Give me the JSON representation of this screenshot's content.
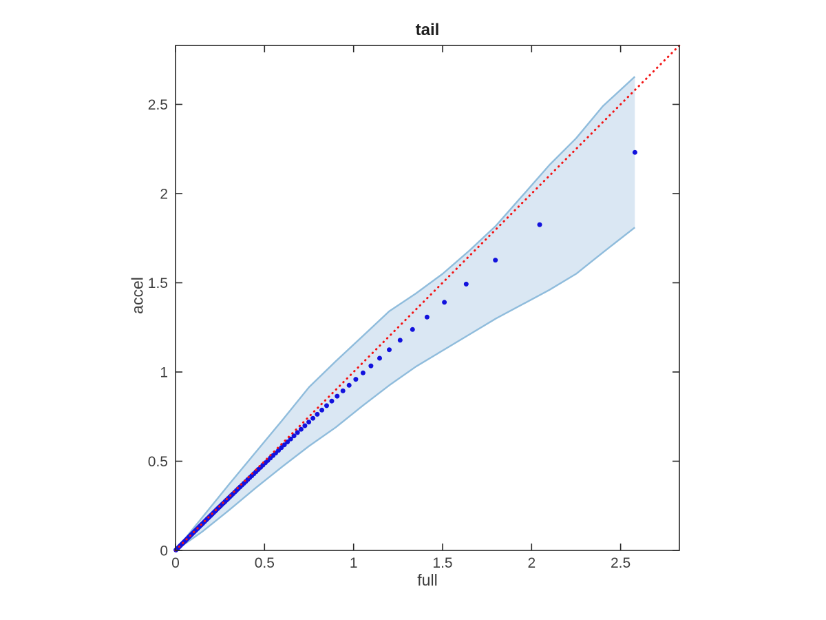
{
  "chart_data": {
    "type": "scatter",
    "title": "tail",
    "xlabel": "full",
    "ylabel": "accel",
    "xlim": [
      0,
      2.83
    ],
    "ylim": [
      0,
      2.83
    ],
    "x_ticks": [
      0,
      0.5,
      1,
      1.5,
      2,
      2.5
    ],
    "y_ticks": [
      0,
      0.5,
      1,
      1.5,
      2,
      2.5
    ],
    "x_tick_labels": [
      "0",
      "0.5",
      "1",
      "1.5",
      "2",
      "2.5"
    ],
    "y_tick_labels": [
      "0",
      "0.5",
      "1",
      "1.5",
      "2",
      "2.5"
    ],
    "grid": false,
    "legend": "none",
    "marker": "filled-circle",
    "n_points": 100,
    "colors": {
      "point": "#1212dd",
      "ref_line": "#f21414",
      "band_fill": "#dae7f3",
      "band_edge": "#8fbcdc",
      "axis": "#262626",
      "text": "#3d3d3d"
    },
    "ref_line": {
      "style": "dotted",
      "equation": "y = x",
      "from": [
        0,
        0
      ],
      "to": [
        2.83,
        2.83
      ]
    },
    "band": {
      "x": [
        0,
        0.15,
        0.3,
        0.45,
        0.6,
        0.75,
        0.9,
        1.05,
        1.2,
        1.35,
        1.5,
        1.65,
        1.8,
        1.95,
        2.1,
        2.25,
        2.4,
        2.58
      ],
      "upper": [
        0,
        0.185,
        0.37,
        0.55,
        0.73,
        0.915,
        1.06,
        1.2,
        1.34,
        1.44,
        1.55,
        1.68,
        1.82,
        1.99,
        2.16,
        2.31,
        2.49,
        2.655
      ],
      "lower": [
        0,
        0.105,
        0.225,
        0.35,
        0.47,
        0.585,
        0.69,
        0.81,
        0.925,
        1.03,
        1.12,
        1.21,
        1.3,
        1.38,
        1.46,
        1.55,
        1.67,
        1.81
      ]
    },
    "points": [
      [
        0.0024,
        0.0024
      ],
      [
        0.0074,
        0.0074
      ],
      [
        0.0123,
        0.0123
      ],
      [
        0.0174,
        0.0174
      ],
      [
        0.0224,
        0.0224
      ],
      [
        0.0276,
        0.0276
      ],
      [
        0.0327,
        0.0327
      ],
      [
        0.038,
        0.0379
      ],
      [
        0.0433,
        0.0432
      ],
      [
        0.0486,
        0.0485
      ],
      [
        0.054,
        0.0538
      ],
      [
        0.0595,
        0.0593
      ],
      [
        0.065,
        0.0648
      ],
      [
        0.0706,
        0.0703
      ],
      [
        0.0763,
        0.076
      ],
      [
        0.082,
        0.0816
      ],
      [
        0.0878,
        0.0874
      ],
      [
        0.0937,
        0.0932
      ],
      [
        0.0996,
        0.0991
      ],
      [
        0.1056,
        0.105
      ],
      [
        0.1117,
        0.111
      ],
      [
        0.1179,
        0.1172
      ],
      [
        0.1241,
        0.1233
      ],
      [
        0.1305,
        0.1296
      ],
      [
        0.1369,
        0.1359
      ],
      [
        0.1434,
        0.1423
      ],
      [
        0.1499,
        0.1487
      ],
      [
        0.1566,
        0.1553
      ],
      [
        0.1634,
        0.162
      ],
      [
        0.1702,
        0.1687
      ],
      [
        0.1772,
        0.1756
      ],
      [
        0.1843,
        0.1825
      ],
      [
        0.1914,
        0.1895
      ],
      [
        0.1987,
        0.1966
      ],
      [
        0.2061,
        0.2039
      ],
      [
        0.2136,
        0.2112
      ],
      [
        0.2212,
        0.2186
      ],
      [
        0.2289,
        0.2261
      ],
      [
        0.2367,
        0.2338
      ],
      [
        0.2447,
        0.2416
      ],
      [
        0.2529,
        0.2495
      ],
      [
        0.2611,
        0.2575
      ],
      [
        0.2695,
        0.2657
      ],
      [
        0.278,
        0.2739
      ],
      [
        0.2867,
        0.2824
      ],
      [
        0.2956,
        0.291
      ],
      [
        0.3046,
        0.2997
      ],
      [
        0.3138,
        0.3086
      ],
      [
        0.3232,
        0.3177
      ],
      [
        0.3327,
        0.3269
      ],
      [
        0.3424,
        0.3362
      ],
      [
        0.3524,
        0.3459
      ],
      [
        0.3625,
        0.3556
      ],
      [
        0.3729,
        0.3656
      ],
      [
        0.3835,
        0.3758
      ],
      [
        0.3943,
        0.3861
      ],
      [
        0.4054,
        0.3968
      ],
      [
        0.4167,
        0.4076
      ],
      [
        0.4283,
        0.4187
      ],
      [
        0.4402,
        0.43
      ],
      [
        0.4524,
        0.4417
      ],
      [
        0.4649,
        0.4536
      ],
      [
        0.4777,
        0.4657
      ],
      [
        0.4908,
        0.4782
      ],
      [
        0.5044,
        0.491
      ],
      [
        0.5183,
        0.5042
      ],
      [
        0.5326,
        0.5177
      ],
      [
        0.5474,
        0.5317
      ],
      [
        0.5626,
        0.546
      ],
      [
        0.5783,
        0.5607
      ],
      [
        0.5945,
        0.5759
      ],
      [
        0.6113,
        0.5917
      ],
      [
        0.6287,
        0.608
      ],
      [
        0.6468,
        0.6248
      ],
      [
        0.6655,
        0.6422
      ],
      [
        0.685,
        0.6604
      ],
      [
        0.7053,
        0.6792
      ],
      [
        0.7264,
        0.6987
      ],
      [
        0.7486,
        0.7192
      ],
      [
        0.7718,
        0.7405
      ],
      [
        0.7961,
        0.7628
      ],
      [
        0.8218,
        0.7863
      ],
      [
        0.8488,
        0.811
      ],
      [
        0.8775,
        0.8371
      ],
      [
        0.9079,
        0.8646
      ],
      [
        0.9404,
        0.894
      ],
      [
        0.9752,
        0.9253
      ],
      [
        1.0127,
        0.9589
      ],
      [
        1.0533,
        0.9951
      ],
      [
        1.0976,
        1.0344
      ],
      [
        1.1463,
        1.0773
      ],
      [
        1.2005,
        1.1248
      ],
      [
        1.2615,
        1.178
      ],
      [
        1.3312,
        1.2382
      ],
      [
        1.4125,
        1.3078
      ],
      [
        1.5102,
        1.3905
      ],
      [
        1.6326,
        1.4927
      ],
      [
        1.7965,
        1.6271
      ],
      [
        2.0453,
        1.8257
      ],
      [
        2.5803,
        2.2308
      ]
    ]
  }
}
